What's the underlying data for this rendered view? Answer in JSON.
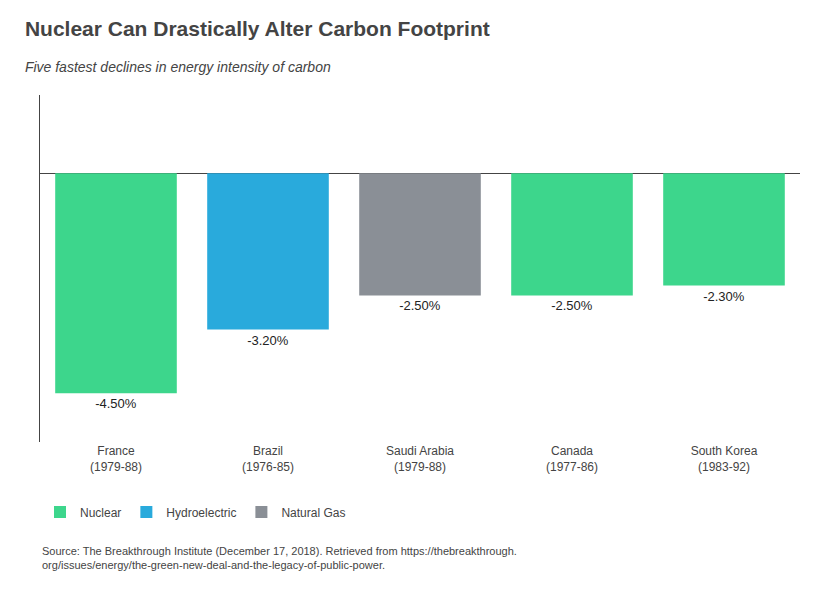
{
  "chart_data": {
    "type": "bar",
    "title": "Nuclear Can Drastically Alter Carbon Footprint",
    "subtitle": "Five fastest declines in energy intensity of carbon",
    "categories": [
      "France\n(1979-88)",
      "Brazil\n(1976-85)",
      "Saudi Arabia\n(1979-88)",
      "Canada\n(1977-86)",
      "South Korea\n(1983-92)"
    ],
    "series": [
      {
        "name": "Nuclear",
        "color": "#3dd68c",
        "values": [
          -4.5,
          null,
          null,
          -2.5,
          -2.3
        ],
        "value_labels": [
          "-4.50%",
          null,
          null,
          "-2.50%",
          "-2.30%"
        ]
      },
      {
        "name": "Hydroelectric",
        "color": "#29aadc",
        "values": [
          null,
          -3.2,
          null,
          null,
          null
        ],
        "value_labels": [
          null,
          "-3.20%",
          null,
          null,
          null
        ]
      },
      {
        "name": "Natural Gas",
        "color": "#8a8f96",
        "values": [
          null,
          null,
          -2.5,
          null,
          null
        ],
        "value_labels": [
          null,
          null,
          "-2.50%",
          null,
          null
        ]
      }
    ],
    "ylim": [
      -5.5,
      1.6
    ],
    "grid": false,
    "legend": "lower left",
    "data_labels": true,
    "tick_labels": "x",
    "annotations": [
      "Source: The Breakthrough Institute (December 17, 2018). Retrieved from https://thebreakthrough.\norg/issues/energy/the-green-new-deal-and-the-legacy-of-public-power."
    ]
  }
}
